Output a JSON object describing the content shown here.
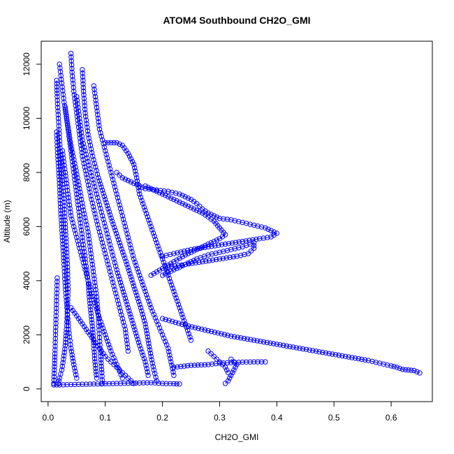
{
  "chart_data": {
    "type": "scatter",
    "title": "ATOM4 Southbound CH2O_GMI",
    "xlabel": "CH2O_GMI",
    "ylabel": "Altitude (m)",
    "xlim": [
      -0.012,
      0.672
    ],
    "ylim": [
      -470,
      12850
    ],
    "x_ticks": [
      "0.0",
      "0.1",
      "0.2",
      "0.3",
      "0.4",
      "0.5",
      "0.6"
    ],
    "x_tick_values": [
      0.0,
      0.1,
      0.2,
      0.3,
      0.4,
      0.5,
      0.6
    ],
    "y_ticks": [
      "0",
      "2000",
      "4000",
      "6000",
      "8000",
      "10000",
      "12000"
    ],
    "y_tick_values": [
      0,
      2000,
      4000,
      6000,
      8000,
      10000,
      12000
    ],
    "grid": false,
    "color": "#0000ff",
    "marker": "open-circle",
    "series": [
      {
        "x": [
          0.015,
          0.016,
          0.018,
          0.02,
          0.022,
          0.025,
          0.028,
          0.03,
          0.032,
          0.034,
          0.035,
          0.034,
          0.032,
          0.03,
          0.027,
          0.024,
          0.02,
          0.018
        ],
        "y": [
          11400,
          10800,
          10000,
          9300,
          8500,
          7700,
          6900,
          6100,
          5300,
          4500,
          3700,
          2900,
          2200,
          1600,
          1100,
          700,
          400,
          200
        ]
      },
      {
        "x": [
          0.02,
          0.024,
          0.028,
          0.034,
          0.04,
          0.048,
          0.055,
          0.062,
          0.07,
          0.075,
          0.08,
          0.085,
          0.088,
          0.09,
          0.092,
          0.094,
          0.095
        ],
        "y": [
          12000,
          11300,
          10600,
          9800,
          9000,
          8200,
          7400,
          6600,
          5800,
          5000,
          4200,
          3400,
          2600,
          1900,
          1200,
          600,
          200
        ]
      },
      {
        "x": [
          0.04,
          0.042,
          0.045,
          0.05,
          0.055,
          0.06,
          0.068,
          0.076,
          0.085,
          0.095,
          0.105,
          0.115,
          0.125,
          0.135,
          0.14
        ],
        "y": [
          12400,
          11700,
          11000,
          10200,
          9400,
          8600,
          7800,
          7000,
          6200,
          5400,
          4600,
          3800,
          3000,
          2200,
          1400
        ]
      },
      {
        "x": [
          0.06,
          0.062,
          0.065,
          0.07,
          0.078,
          0.088,
          0.1,
          0.112,
          0.125,
          0.138,
          0.15,
          0.162,
          0.17,
          0.175,
          0.18,
          0.185,
          0.19
        ],
        "y": [
          11800,
          11000,
          10200,
          9400,
          8600,
          7800,
          7000,
          6200,
          5400,
          4600,
          3800,
          3000,
          2400,
          1800,
          1200,
          700,
          300
        ]
      },
      {
        "x": [
          0.08,
          0.085,
          0.09,
          0.1,
          0.11,
          0.12,
          0.13,
          0.14,
          0.15,
          0.16,
          0.17,
          0.18,
          0.19,
          0.2,
          0.21,
          0.215,
          0.22
        ],
        "y": [
          11200,
          10400,
          9600,
          8800,
          8000,
          7200,
          6400,
          5600,
          4800,
          4200,
          3600,
          3000,
          2500,
          2000,
          1500,
          1000,
          500
        ]
      },
      {
        "x": [
          0.1,
          0.11,
          0.12,
          0.13,
          0.14,
          0.15,
          0.155,
          0.16,
          0.17,
          0.18,
          0.19,
          0.2,
          0.21,
          0.22,
          0.23,
          0.24,
          0.25
        ],
        "y": [
          9100,
          9100,
          9100,
          9000,
          8700,
          8300,
          7800,
          7200,
          6600,
          6000,
          5400,
          4800,
          4200,
          3600,
          3000,
          2400,
          1800
        ]
      },
      {
        "x": [
          0.03,
          0.035,
          0.04,
          0.045,
          0.05,
          0.055,
          0.06,
          0.065,
          0.07,
          0.072,
          0.075,
          0.078,
          0.08,
          0.082,
          0.085
        ],
        "y": [
          10400,
          9600,
          8800,
          8000,
          7200,
          6400,
          5600,
          4800,
          4000,
          3400,
          2800,
          2200,
          1600,
          1000,
          400
        ]
      },
      {
        "x": [
          0.015,
          0.017,
          0.02,
          0.022,
          0.025,
          0.028,
          0.03,
          0.033,
          0.036,
          0.04,
          0.045,
          0.05
        ],
        "y": [
          9500,
          8600,
          7600,
          6600,
          5600,
          4600,
          3800,
          3000,
          2200,
          1500,
          900,
          400
        ]
      },
      {
        "x": [
          0.05,
          0.055,
          0.06,
          0.07,
          0.08,
          0.09,
          0.1,
          0.11,
          0.12,
          0.13,
          0.14,
          0.15,
          0.16,
          0.17,
          0.175
        ],
        "y": [
          10800,
          10000,
          9200,
          8400,
          7600,
          6800,
          6000,
          5200,
          4400,
          3700,
          3000,
          2300,
          1600,
          1000,
          500
        ]
      },
      {
        "x": [
          0.025,
          0.03,
          0.035,
          0.04,
          0.05,
          0.06,
          0.07,
          0.08,
          0.09,
          0.1,
          0.11,
          0.12,
          0.13
        ],
        "y": [
          8800,
          8000,
          7200,
          6400,
          5600,
          4800,
          4000,
          3300,
          2600,
          2000,
          1400,
          900,
          400
        ]
      },
      {
        "x": [
          0.12,
          0.13,
          0.15,
          0.17,
          0.19,
          0.21,
          0.23,
          0.25,
          0.26,
          0.27,
          0.28,
          0.29,
          0.3,
          0.32,
          0.34,
          0.36,
          0.38,
          0.39,
          0.4,
          0.39,
          0.37,
          0.34,
          0.31,
          0.28,
          0.25,
          0.22,
          0.2
        ],
        "y": [
          8000,
          7800,
          7600,
          7400,
          7350,
          7300,
          7200,
          7000,
          6850,
          6650,
          6500,
          6400,
          6300,
          6250,
          6150,
          6050,
          5950,
          5850,
          5750,
          5620,
          5550,
          5450,
          5350,
          5250,
          5150,
          5000,
          4900
        ]
      },
      {
        "x": [
          0.17,
          0.19,
          0.21,
          0.23,
          0.25,
          0.27,
          0.29,
          0.3,
          0.31,
          0.3,
          0.28,
          0.26,
          0.24,
          0.22,
          0.2,
          0.18
        ],
        "y": [
          7500,
          7300,
          7100,
          6900,
          6700,
          6500,
          6200,
          5950,
          5700,
          5550,
          5350,
          5150,
          4950,
          4700,
          4450,
          4200
        ]
      },
      {
        "x": [
          0.2,
          0.22,
          0.24,
          0.26,
          0.28,
          0.3,
          0.32,
          0.34,
          0.36,
          0.36,
          0.35,
          0.33,
          0.3,
          0.27,
          0.24,
          0.21
        ],
        "y": [
          4200,
          4400,
          4600,
          4800,
          4950,
          5050,
          5150,
          5250,
          5400,
          5200,
          5000,
          4900,
          4800,
          4700,
          4600,
          4500
        ]
      },
      {
        "x": [
          0.2,
          0.24,
          0.28,
          0.32,
          0.36,
          0.4,
          0.44,
          0.48,
          0.52,
          0.56,
          0.58,
          0.6,
          0.61,
          0.62,
          0.63,
          0.64,
          0.65
        ],
        "y": [
          2600,
          2350,
          2150,
          1950,
          1800,
          1650,
          1500,
          1350,
          1200,
          1050,
          950,
          850,
          800,
          720,
          700,
          680,
          590
        ]
      },
      {
        "x": [
          0.22,
          0.25,
          0.28,
          0.3,
          0.32,
          0.34,
          0.36,
          0.38
        ],
        "y": [
          800,
          870,
          900,
          950,
          970,
          990,
          1000,
          1000
        ]
      },
      {
        "x": [
          0.31,
          0.315,
          0.32,
          0.325,
          0.33,
          0.32
        ],
        "y": [
          200,
          300,
          500,
          700,
          900,
          1100
        ]
      },
      {
        "x": [
          0.28,
          0.29,
          0.3,
          0.31,
          0.315
        ],
        "y": [
          1400,
          1200,
          1000,
          800,
          600
        ]
      },
      {
        "x": [
          0.01,
          0.02,
          0.04,
          0.06,
          0.08,
          0.1,
          0.12,
          0.14,
          0.16,
          0.18,
          0.2,
          0.22,
          0.23
        ],
        "y": [
          150,
          150,
          160,
          170,
          180,
          190,
          200,
          210,
          220,
          230,
          200,
          190,
          180
        ]
      },
      {
        "x": [
          0.01,
          0.011,
          0.012,
          0.013,
          0.014,
          0.015,
          0.016
        ],
        "y": [
          200,
          700,
          1300,
          2000,
          2700,
          3400,
          4100
        ]
      },
      {
        "x": [
          0.04,
          0.05,
          0.06,
          0.07,
          0.08,
          0.09,
          0.1,
          0.11,
          0.12,
          0.13,
          0.14,
          0.15
        ],
        "y": [
          3000,
          2700,
          2400,
          2100,
          1800,
          1500,
          1200,
          1000,
          800,
          600,
          400,
          200
        ]
      }
    ]
  }
}
